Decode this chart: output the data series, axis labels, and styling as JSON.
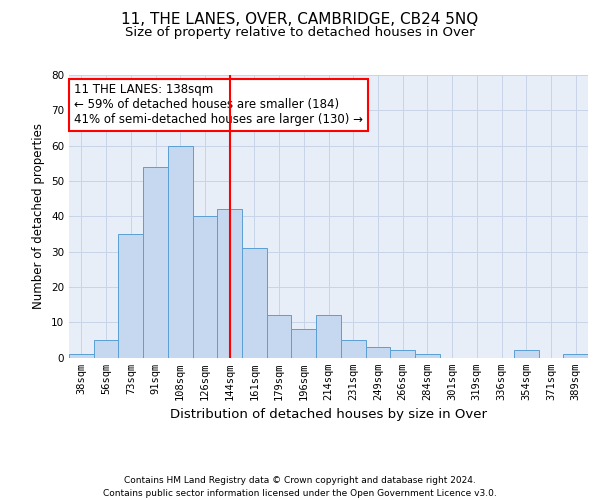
{
  "title": "11, THE LANES, OVER, CAMBRIDGE, CB24 5NQ",
  "subtitle": "Size of property relative to detached houses in Over",
  "xlabel": "Distribution of detached houses by size in Over",
  "ylabel": "Number of detached properties",
  "categories": [
    "38sqm",
    "56sqm",
    "73sqm",
    "91sqm",
    "108sqm",
    "126sqm",
    "144sqm",
    "161sqm",
    "179sqm",
    "196sqm",
    "214sqm",
    "231sqm",
    "249sqm",
    "266sqm",
    "284sqm",
    "301sqm",
    "319sqm",
    "336sqm",
    "354sqm",
    "371sqm",
    "389sqm"
  ],
  "values": [
    1,
    5,
    35,
    54,
    60,
    40,
    42,
    31,
    12,
    8,
    12,
    5,
    3,
    2,
    1,
    0,
    0,
    0,
    2,
    0,
    1
  ],
  "bar_color": "#c5d8f0",
  "bar_edge_color": "#5a9fd4",
  "vline_x": 6.0,
  "vline_color": "red",
  "annotation_text": "11 THE LANES: 138sqm\n← 59% of detached houses are smaller (184)\n41% of semi-detached houses are larger (130) →",
  "annotation_box_color": "white",
  "annotation_box_edge": "red",
  "ylim": [
    0,
    80
  ],
  "yticks": [
    0,
    10,
    20,
    30,
    40,
    50,
    60,
    70,
    80
  ],
  "grid_color": "#c8d4e8",
  "background_color": "#e8eef8",
  "footnote": "Contains HM Land Registry data © Crown copyright and database right 2024.\nContains public sector information licensed under the Open Government Licence v3.0.",
  "title_fontsize": 11,
  "subtitle_fontsize": 9.5,
  "xlabel_fontsize": 9.5,
  "ylabel_fontsize": 8.5,
  "tick_fontsize": 7.5,
  "annotation_fontsize": 8.5,
  "footnote_fontsize": 6.5
}
